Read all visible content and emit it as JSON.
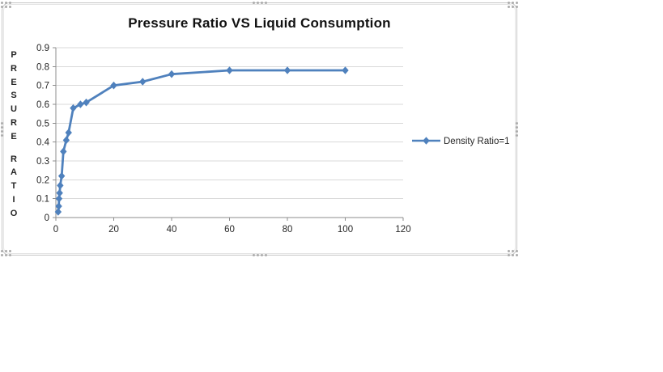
{
  "chart_data": {
    "type": "line",
    "title": "Pressure Ratio VS Liquid Consumption",
    "xlabel": "",
    "ylabel": "PRESURE RATIO",
    "ylabel_layout": "vertical-stacked",
    "xlim": [
      0,
      120
    ],
    "ylim": [
      0,
      0.9
    ],
    "x_ticks": [
      0,
      20,
      40,
      60,
      80,
      100,
      120
    ],
    "x_tick_labels": [
      "0",
      "20",
      "40",
      "60",
      "80",
      "100",
      "120"
    ],
    "y_ticks": [
      0,
      0.1,
      0.2,
      0.3,
      0.4,
      0.5,
      0.6,
      0.7,
      0.8,
      0.9
    ],
    "y_tick_labels": [
      "0",
      "0.1",
      "0.2",
      "0.3",
      "0.4",
      "0.5",
      "0.6",
      "0.7",
      "0.8",
      "0.9"
    ],
    "grid": "horizontal",
    "legend_position": "right",
    "series": [
      {
        "name": "Density Ratio=1",
        "color": "#4F81BD",
        "marker": "diamond",
        "points": [
          [
            0.8,
            0.03
          ],
          [
            1.0,
            0.06
          ],
          [
            1.1,
            0.1
          ],
          [
            1.3,
            0.13
          ],
          [
            1.5,
            0.17
          ],
          [
            2.0,
            0.22
          ],
          [
            2.6,
            0.35
          ],
          [
            3.6,
            0.41
          ],
          [
            4.4,
            0.45
          ],
          [
            6.0,
            0.58
          ],
          [
            8.5,
            0.6
          ],
          [
            10.5,
            0.61
          ],
          [
            20,
            0.7
          ],
          [
            30,
            0.72
          ],
          [
            40,
            0.76
          ],
          [
            60,
            0.78
          ],
          [
            80,
            0.78
          ],
          [
            100,
            0.78
          ]
        ]
      }
    ],
    "colors": {
      "series": "#4F81BD",
      "gridline": "#D9D9D9",
      "axis": "#8C8C8C",
      "tick_label": "#262626",
      "title": "#111111",
      "legend_text": "#262626"
    }
  },
  "frame": {
    "selected": true
  }
}
